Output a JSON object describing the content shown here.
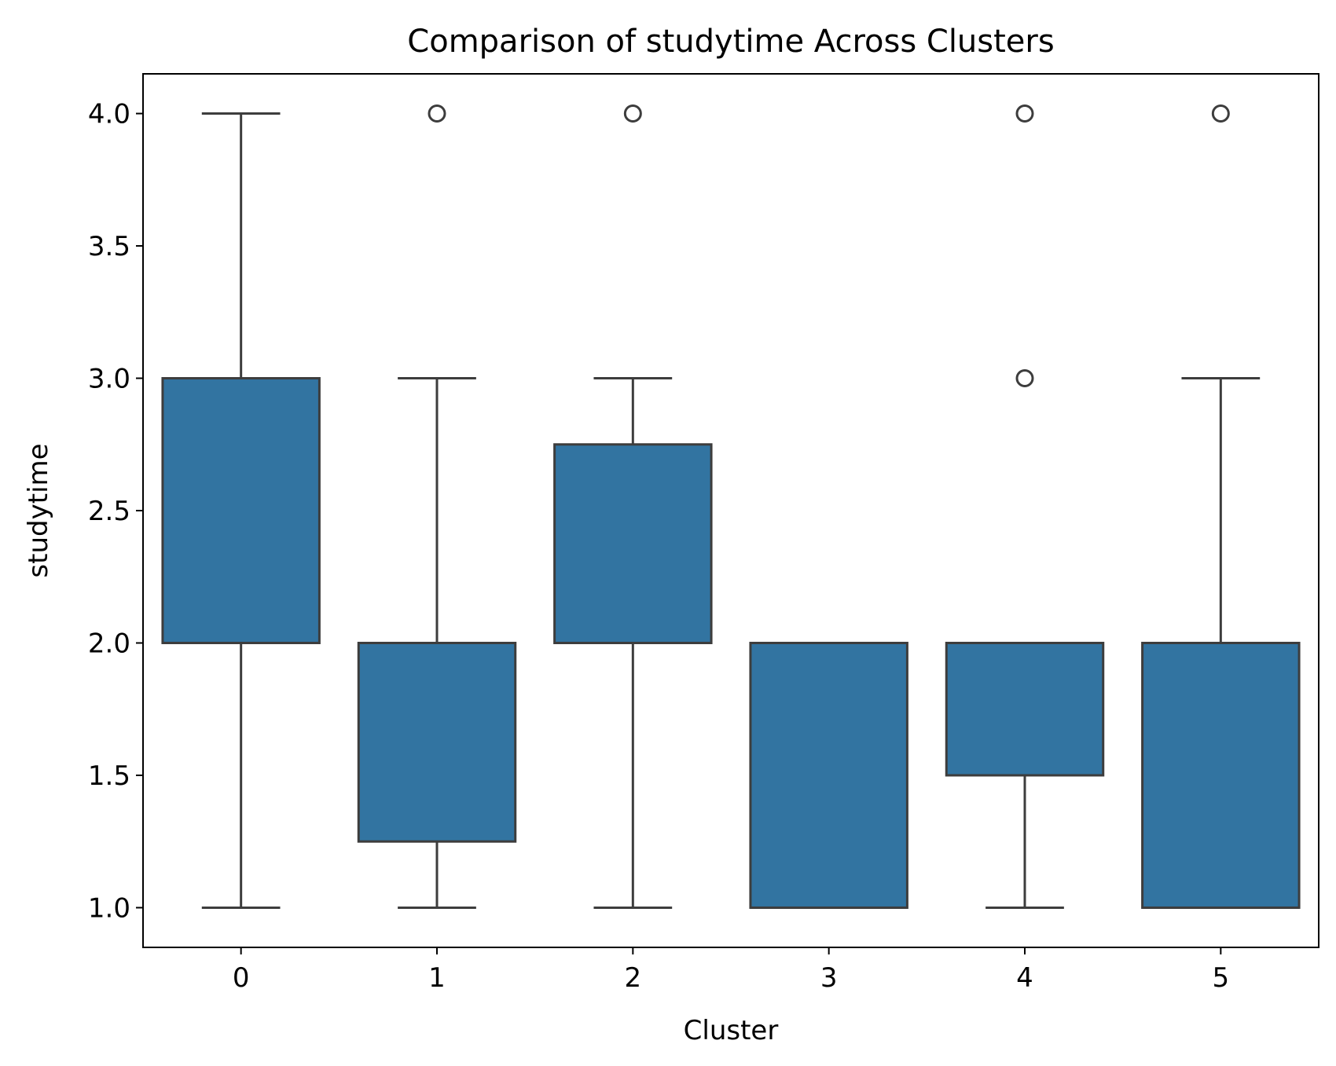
{
  "chart_data": {
    "type": "box",
    "title": "Comparison of studytime Across Clusters",
    "xlabel": "Cluster",
    "ylabel": "studytime",
    "categories": [
      "0",
      "1",
      "2",
      "3",
      "4",
      "5"
    ],
    "ylim": [
      0.85,
      4.15
    ],
    "yticks": [
      1.0,
      1.5,
      2.0,
      2.5,
      3.0,
      3.5,
      4.0
    ],
    "ytick_labels": [
      "1.0",
      "1.5",
      "2.0",
      "2.5",
      "3.0",
      "3.5",
      "4.0"
    ],
    "grid": false,
    "legend": "none",
    "box_color": "#3274a1",
    "line_color": "#3d3d3d",
    "boxes": [
      {
        "category": "0",
        "whisker_low": 1.0,
        "q1": 2.0,
        "median": 2.0,
        "q3": 3.0,
        "whisker_high": 4.0,
        "outliers": []
      },
      {
        "category": "1",
        "whisker_low": 1.0,
        "q1": 1.25,
        "median": 2.0,
        "q3": 2.0,
        "whisker_high": 3.0,
        "outliers": [
          4.0
        ]
      },
      {
        "category": "2",
        "whisker_low": 1.0,
        "q1": 2.0,
        "median": 2.0,
        "q3": 2.75,
        "whisker_high": 3.0,
        "outliers": [
          4.0
        ]
      },
      {
        "category": "3",
        "whisker_low": 1.0,
        "q1": 1.0,
        "median": 1.0,
        "q3": 2.0,
        "whisker_high": 2.0,
        "outliers": []
      },
      {
        "category": "4",
        "whisker_low": 1.0,
        "q1": 1.5,
        "median": 2.0,
        "q3": 2.0,
        "whisker_high": 2.0,
        "outliers": [
          3.0,
          4.0
        ]
      },
      {
        "category": "5",
        "whisker_low": 1.0,
        "q1": 1.0,
        "median": 1.0,
        "q3": 2.0,
        "whisker_high": 3.0,
        "outliers": [
          4.0
        ]
      }
    ]
  }
}
